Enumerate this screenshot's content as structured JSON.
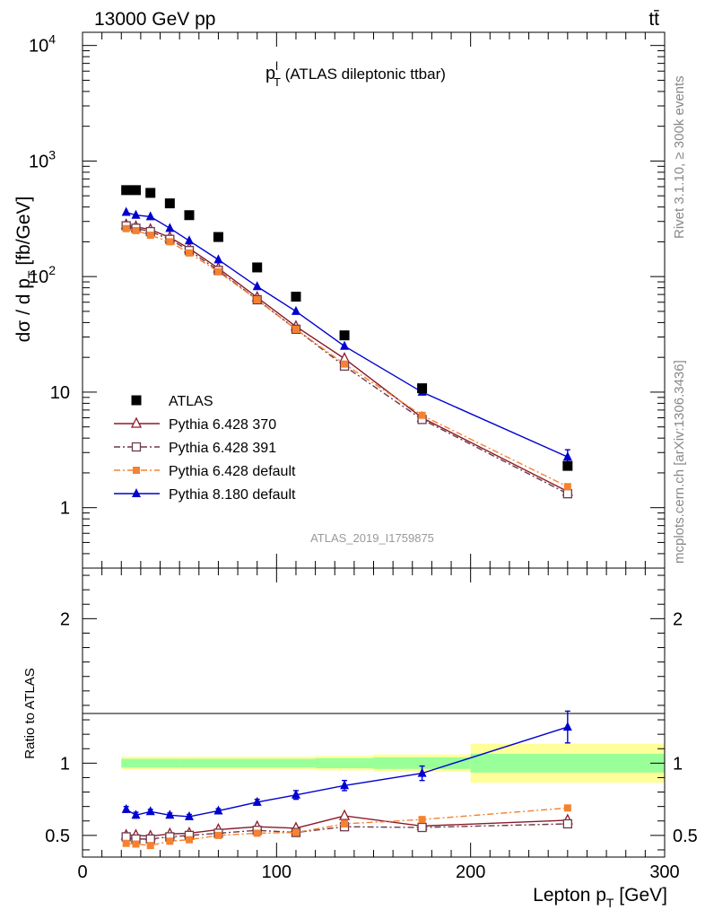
{
  "header": {
    "energy_label": "13000 GeV pp",
    "process_label": "tt̄"
  },
  "chart_data": [
    {
      "type": "scatter",
      "panel": "main",
      "title_main": "p",
      "title_sup": "l",
      "title_sub": "T",
      "title_rest": " (ATLAS dileptonic ttbar)",
      "ylabel_main": "dσ / d p",
      "ylabel_sub": "T",
      "ylabel_rest": " [fb/GeV]",
      "yscale": "log",
      "ylim": [
        0.3,
        13000
      ],
      "xlim": [
        0,
        300
      ],
      "y_tick_labels": [
        "1",
        "10",
        "10",
        "10",
        "10"
      ],
      "y_tick_exponents": [
        "2",
        "3",
        "4"
      ],
      "x": [
        22.5,
        27.5,
        35,
        45,
        55,
        70,
        90,
        110,
        135,
        175,
        250
      ],
      "series": [
        {
          "name": "ATLAS",
          "color": "#000000",
          "style": "square",
          "values": [
            560,
            560,
            530,
            430,
            340,
            220,
            120,
            67,
            31,
            10.8,
            2.3
          ]
        },
        {
          "name": "Pythia 6.428 370",
          "color": "#8b1a2b",
          "style": "open-triangle",
          "values": [
            280,
            270,
            255,
            218,
            175,
            118,
            66,
            37,
            19.5,
            6.0,
            1.38
          ]
        },
        {
          "name": "Pythia 6.428 391",
          "color": "#6b3a4a",
          "style": "open-square",
          "values": [
            275,
            262,
            245,
            210,
            168,
            113,
            63,
            35,
            16.8,
            5.8,
            1.32
          ]
        },
        {
          "name": "Pythia 6.428 default",
          "color": "#f58231",
          "style": "filled-square",
          "values": [
            260,
            250,
            228,
            200,
            160,
            110,
            63,
            35,
            17.5,
            6.3,
            1.52
          ]
        },
        {
          "name": "Pythia 8.180 default",
          "color": "#0000d0",
          "style": "filled-triangle",
          "values": [
            360,
            340,
            330,
            262,
            204,
            140,
            82,
            50,
            25,
            10.0,
            2.75
          ]
        }
      ],
      "error_bars": {
        "Pythia 8.180 default": [
          [
            239,
            0.35
          ]
        ]
      },
      "watermark": "ATLAS_2019_I1759875",
      "side_label_top": "Rivet 3.1.10, ≥ 300k events",
      "side_label_bottom": "mcplots.cern.ch [arXiv:1306.3436]"
    },
    {
      "type": "line",
      "panel": "ratio",
      "ylabel": "Ratio to ATLAS",
      "xlabel_main": "Lepton p",
      "xlabel_sub": "T",
      "xlabel_rest": " [GeV]",
      "ylim": [
        0.35,
        2.35
      ],
      "xlim": [
        0,
        300
      ],
      "x_tick_labels": [
        "0",
        "100",
        "200",
        "300"
      ],
      "y_tick_labels": [
        "0.5",
        "1",
        "2"
      ],
      "bands": [
        {
          "x_from": 20,
          "x_to": 50,
          "inner": 0.03,
          "outer": 0.045
        },
        {
          "x_from": 50,
          "x_to": 120,
          "inner": 0.03,
          "outer": 0.045
        },
        {
          "x_from": 120,
          "x_to": 150,
          "inner": 0.035,
          "outer": 0.05
        },
        {
          "x_from": 150,
          "x_to": 200,
          "inner": 0.04,
          "outer": 0.06
        },
        {
          "x_from": 200,
          "x_to": 300,
          "inner": 0.065,
          "outer": 0.135
        }
      ],
      "x": [
        22.5,
        27.5,
        35,
        45,
        55,
        70,
        90,
        110,
        135,
        175,
        250
      ],
      "series": [
        {
          "name": "Pythia 6.428 370",
          "color": "#8b1a2b",
          "style": "open-triangle",
          "values": [
            0.5,
            0.5,
            0.495,
            0.51,
            0.515,
            0.54,
            0.56,
            0.55,
            0.635,
            0.565,
            0.605
          ]
        },
        {
          "name": "Pythia 6.428 391",
          "color": "#6b3a4a",
          "style": "open-square",
          "values": [
            0.49,
            0.475,
            0.475,
            0.49,
            0.5,
            0.515,
            0.535,
            0.52,
            0.56,
            0.555,
            0.58
          ]
        },
        {
          "name": "Pythia 6.428 default",
          "color": "#f58231",
          "style": "filled-square",
          "values": [
            0.445,
            0.44,
            0.43,
            0.46,
            0.47,
            0.5,
            0.515,
            0.52,
            0.58,
            0.61,
            0.69
          ]
        },
        {
          "name": "Pythia 8.180 default",
          "color": "#0000d0",
          "style": "filled-triangle",
          "values": [
            0.68,
            0.64,
            0.665,
            0.64,
            0.63,
            0.67,
            0.73,
            0.78,
            0.845,
            0.93,
            1.25
          ]
        }
      ],
      "errors": {
        "Pythia 8.180 default": [
          0.02,
          0.02,
          0.015,
          0.015,
          0.015,
          0.015,
          0.02,
          0.03,
          0.035,
          0.05,
          0.11
        ]
      }
    }
  ]
}
